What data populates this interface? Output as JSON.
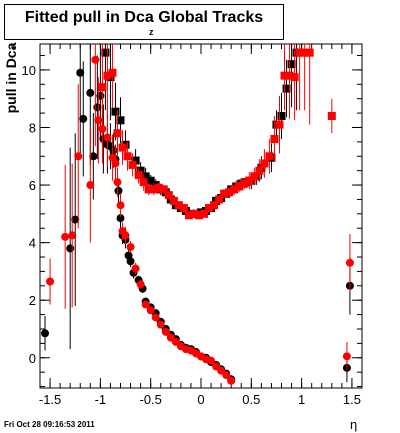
{
  "chart_data": {
    "type": "scatter",
    "title": "Fitted pull in Dca Global Tracks",
    "title_subscript": "z",
    "ylabel": "pull in Dca",
    "ylabel_subscript": "z",
    "xlabel": "η",
    "xlim": [
      -1.6,
      1.6
    ],
    "ylim": [
      -1.05,
      10.9
    ],
    "xticks": [
      -1.5,
      -1,
      -0.5,
      0,
      0.5,
      1,
      1.5
    ],
    "xtick_labels": [
      "-1.5",
      "-1",
      "-0.5",
      "0",
      "0.5",
      "1",
      "1.5"
    ],
    "yticks": [
      0,
      2,
      4,
      6,
      8,
      10
    ],
    "ytick_labels": [
      "0",
      "2",
      "4",
      "6",
      "8",
      "10"
    ],
    "grid": false,
    "legend": "none",
    "series": [
      {
        "marker": "circle",
        "color": "#000000",
        "points": [
          [
            -1.55,
            0.85,
            0.6
          ],
          [
            -1.3,
            3.8,
            3.5
          ],
          [
            -1.25,
            4.8,
            3.0
          ],
          [
            -1.2,
            9.9,
            3.0
          ],
          [
            -1.17,
            8.3,
            2.0
          ],
          [
            -1.1,
            9.2,
            2.5
          ],
          [
            -1.07,
            7.0,
            1.5
          ],
          [
            -1.03,
            8.7,
            1.8
          ],
          [
            -1.0,
            9.1,
            1.5
          ],
          [
            -0.97,
            7.6,
            1.2
          ],
          [
            -0.93,
            7.4,
            1.0
          ],
          [
            -0.9,
            7.35,
            0.8
          ],
          [
            -0.87,
            7.2,
            0.6
          ],
          [
            -0.85,
            6.9,
            0.5
          ],
          [
            -0.82,
            5.8,
            0.4
          ],
          [
            -0.8,
            4.85,
            0.4
          ],
          [
            -0.78,
            4.25,
            0.3
          ],
          [
            -0.75,
            4.1,
            0.3
          ],
          [
            -0.72,
            3.55,
            0.3
          ],
          [
            -0.7,
            3.35,
            0.2
          ],
          [
            -0.67,
            2.95,
            0.2
          ],
          [
            -0.62,
            2.7,
            0.15
          ],
          [
            -0.58,
            2.4,
            0.15
          ],
          [
            -0.55,
            1.95,
            0.12
          ],
          [
            -0.5,
            1.75,
            0.1
          ],
          [
            -0.45,
            1.55,
            0.1
          ],
          [
            -0.4,
            1.25,
            0.1
          ],
          [
            -0.35,
            1.0,
            0.1
          ],
          [
            -0.3,
            0.8,
            0.1
          ],
          [
            -0.25,
            0.65,
            0.08
          ],
          [
            -0.2,
            0.45,
            0.08
          ],
          [
            -0.15,
            0.35,
            0.08
          ],
          [
            -0.1,
            0.3,
            0.08
          ],
          [
            -0.05,
            0.2,
            0.08
          ],
          [
            0.0,
            0.05,
            0.08
          ],
          [
            0.05,
            0.0,
            0.08
          ],
          [
            0.1,
            -0.15,
            0.08
          ],
          [
            0.15,
            -0.25,
            0.1
          ],
          [
            0.2,
            -0.4,
            0.1
          ],
          [
            0.25,
            -0.55,
            0.1
          ],
          [
            0.3,
            -0.75,
            0.15
          ],
          [
            1.45,
            -0.35,
            0.5
          ],
          [
            1.48,
            2.5,
            1.0
          ]
        ]
      },
      {
        "marker": "circle",
        "color": "#ff0000",
        "points": [
          [
            -1.5,
            2.65,
            0.8
          ],
          [
            -1.35,
            4.2,
            2.5
          ],
          [
            -1.28,
            4.25,
            2.5
          ],
          [
            -1.22,
            7.0,
            2.5
          ],
          [
            -1.1,
            6.0,
            2.0
          ],
          [
            -1.05,
            10.35,
            3.0
          ],
          [
            -1.02,
            8.25,
            1.5
          ],
          [
            -0.98,
            7.95,
            1.2
          ],
          [
            -0.93,
            7.65,
            1.0
          ],
          [
            -0.88,
            6.95,
            0.8
          ],
          [
            -0.85,
            6.75,
            0.6
          ],
          [
            -0.83,
            6.1,
            0.5
          ],
          [
            -0.8,
            5.3,
            0.4
          ],
          [
            -0.78,
            4.4,
            0.3
          ],
          [
            -0.75,
            4.25,
            0.3
          ],
          [
            -0.7,
            3.85,
            0.2
          ],
          [
            -0.65,
            3.1,
            0.2
          ],
          [
            -0.6,
            2.55,
            0.15
          ],
          [
            -0.55,
            1.85,
            0.12
          ],
          [
            -0.5,
            1.65,
            0.1
          ],
          [
            -0.45,
            1.4,
            0.1
          ],
          [
            -0.4,
            1.15,
            0.1
          ],
          [
            -0.35,
            0.9,
            0.1
          ],
          [
            -0.3,
            0.7,
            0.1
          ],
          [
            -0.25,
            0.55,
            0.08
          ],
          [
            -0.2,
            0.4,
            0.08
          ],
          [
            -0.15,
            0.3,
            0.08
          ],
          [
            -0.1,
            0.25,
            0.08
          ],
          [
            -0.05,
            0.15,
            0.08
          ],
          [
            0.0,
            0.05,
            0.08
          ],
          [
            0.05,
            -0.05,
            0.08
          ],
          [
            0.1,
            -0.1,
            0.08
          ],
          [
            0.15,
            -0.3,
            0.1
          ],
          [
            0.2,
            -0.45,
            0.1
          ],
          [
            0.25,
            -0.6,
            0.1
          ],
          [
            0.3,
            -0.8,
            0.15
          ],
          [
            1.45,
            0.05,
            0.5
          ],
          [
            1.48,
            3.3,
            1.0
          ]
        ]
      },
      {
        "marker": "square",
        "color": "#000000",
        "points": [
          [
            -0.95,
            10.6,
            2.0
          ],
          [
            -0.9,
            9.75,
            1.5
          ],
          [
            -0.85,
            8.55,
            1.0
          ],
          [
            -0.8,
            8.25,
            0.8
          ],
          [
            -0.75,
            7.4,
            0.5
          ],
          [
            -0.65,
            6.85,
            0.4
          ],
          [
            -0.6,
            6.5,
            0.3
          ],
          [
            -0.55,
            6.3,
            0.3
          ],
          [
            -0.5,
            6.15,
            0.2
          ],
          [
            -0.45,
            6.0,
            0.2
          ],
          [
            -0.4,
            5.85,
            0.2
          ],
          [
            -0.35,
            5.75,
            0.15
          ],
          [
            -0.3,
            5.5,
            0.15
          ],
          [
            -0.25,
            5.3,
            0.15
          ],
          [
            -0.2,
            5.2,
            0.12
          ],
          [
            -0.15,
            5.1,
            0.12
          ],
          [
            -0.1,
            5.0,
            0.1
          ],
          [
            -0.05,
            5.0,
            0.1
          ],
          [
            0.0,
            5.05,
            0.1
          ],
          [
            0.05,
            5.1,
            0.1
          ],
          [
            0.1,
            5.2,
            0.12
          ],
          [
            0.15,
            5.45,
            0.12
          ],
          [
            0.2,
            5.55,
            0.15
          ],
          [
            0.25,
            5.7,
            0.15
          ],
          [
            0.3,
            5.85,
            0.15
          ],
          [
            0.35,
            5.95,
            0.2
          ],
          [
            0.4,
            6.05,
            0.2
          ],
          [
            0.45,
            6.1,
            0.2
          ],
          [
            0.5,
            6.15,
            0.3
          ],
          [
            0.55,
            6.3,
            0.3
          ],
          [
            0.6,
            6.6,
            0.4
          ],
          [
            0.7,
            6.95,
            0.5
          ],
          [
            0.75,
            8.1,
            0.5
          ],
          [
            0.8,
            8.4,
            0.8
          ],
          [
            0.85,
            9.35,
            1.0
          ],
          [
            0.9,
            10.2,
            1.5
          ],
          [
            0.95,
            10.6,
            2.0
          ]
        ]
      },
      {
        "marker": "square",
        "color": "#ff0000",
        "points": [
          [
            -0.98,
            9.4,
            2.0
          ],
          [
            -0.93,
            9.8,
            1.5
          ],
          [
            -0.88,
            9.9,
            1.2
          ],
          [
            -0.83,
            7.8,
            0.8
          ],
          [
            -0.78,
            7.3,
            0.6
          ],
          [
            -0.73,
            7.0,
            0.5
          ],
          [
            -0.68,
            6.7,
            0.4
          ],
          [
            -0.62,
            6.35,
            0.3
          ],
          [
            -0.57,
            6.1,
            0.3
          ],
          [
            -0.52,
            5.85,
            0.2
          ],
          [
            -0.47,
            5.85,
            0.2
          ],
          [
            -0.42,
            5.9,
            0.2
          ],
          [
            -0.37,
            5.85,
            0.15
          ],
          [
            -0.32,
            5.65,
            0.15
          ],
          [
            -0.27,
            5.45,
            0.15
          ],
          [
            -0.22,
            5.3,
            0.12
          ],
          [
            -0.17,
            5.2,
            0.12
          ],
          [
            -0.12,
            4.95,
            0.1
          ],
          [
            -0.07,
            5.0,
            0.1
          ],
          [
            -0.02,
            4.95,
            0.1
          ],
          [
            0.03,
            5.0,
            0.1
          ],
          [
            0.08,
            5.2,
            0.12
          ],
          [
            0.13,
            5.3,
            0.12
          ],
          [
            0.18,
            5.5,
            0.15
          ],
          [
            0.23,
            5.7,
            0.15
          ],
          [
            0.28,
            5.75,
            0.15
          ],
          [
            0.33,
            5.85,
            0.2
          ],
          [
            0.38,
            5.95,
            0.2
          ],
          [
            0.43,
            6.05,
            0.2
          ],
          [
            0.48,
            6.15,
            0.3
          ],
          [
            0.53,
            6.3,
            0.3
          ],
          [
            0.58,
            6.5,
            0.4
          ],
          [
            0.63,
            6.75,
            0.5
          ],
          [
            0.68,
            7.0,
            0.6
          ],
          [
            0.73,
            7.6,
            0.8
          ],
          [
            0.78,
            8.1,
            1.0
          ],
          [
            0.83,
            9.8,
            1.2
          ],
          [
            0.88,
            9.8,
            1.5
          ],
          [
            0.93,
            9.75,
            1.5
          ],
          [
            0.98,
            10.6,
            2.0
          ],
          [
            1.03,
            10.6,
            2.0
          ],
          [
            1.08,
            10.6,
            2.5
          ],
          [
            1.3,
            8.4,
            0.6
          ]
        ]
      }
    ]
  },
  "footer": {
    "timestamp": "Fri Oct 28 09:16:53 2011"
  }
}
